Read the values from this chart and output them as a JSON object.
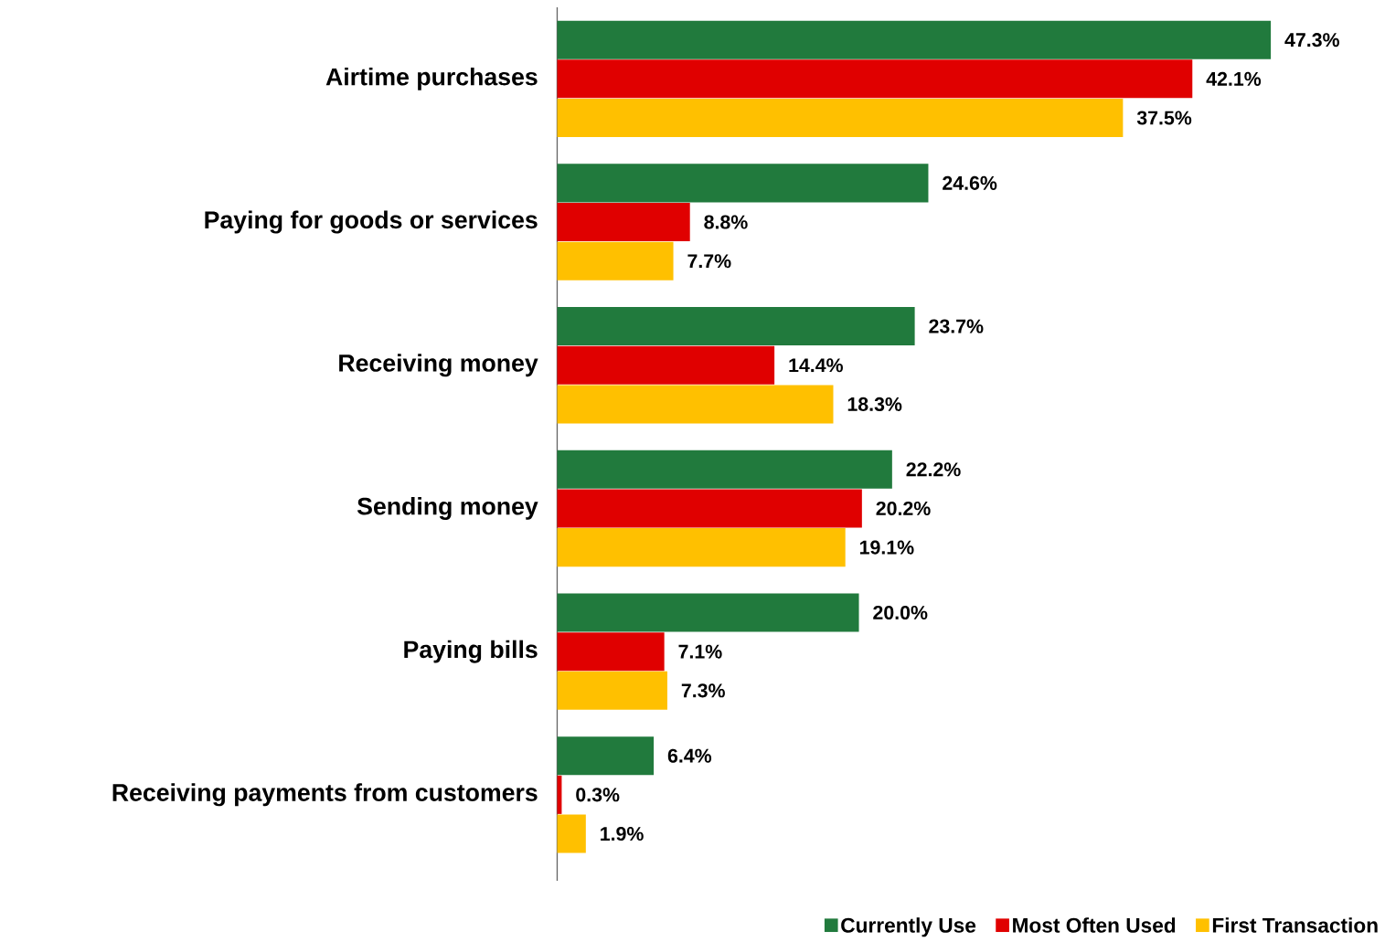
{
  "chart_data": {
    "type": "bar",
    "orientation": "horizontal",
    "categories": [
      "Airtime purchases",
      "Paying for goods or services",
      "Receiving money",
      "Sending money",
      "Paying bills",
      "Receiving payments from customers"
    ],
    "series": [
      {
        "name": "Currently Use",
        "color": "#217a3d",
        "values": [
          47.3,
          24.6,
          23.7,
          22.2,
          20.0,
          6.4
        ],
        "value_labels": [
          "47.3%",
          "24.6%",
          "23.7%",
          "22.2%",
          "20.0%",
          "6.4%"
        ]
      },
      {
        "name": "Most Often Used",
        "color": "#e00000",
        "values": [
          42.1,
          8.8,
          14.4,
          20.2,
          7.1,
          0.3
        ],
        "value_labels": [
          "42.1%",
          "8.8%",
          "14.4%",
          "20.2%",
          "7.1%",
          "0.3%"
        ]
      },
      {
        "name": "First Transaction",
        "color": "#ffc000",
        "values": [
          37.5,
          7.7,
          18.3,
          19.1,
          7.3,
          1.9
        ],
        "value_labels": [
          "37.5%",
          "7.7%",
          "18.3%",
          "19.1%",
          "7.3%",
          "1.9%"
        ]
      }
    ],
    "legend": "bottom right"
  }
}
